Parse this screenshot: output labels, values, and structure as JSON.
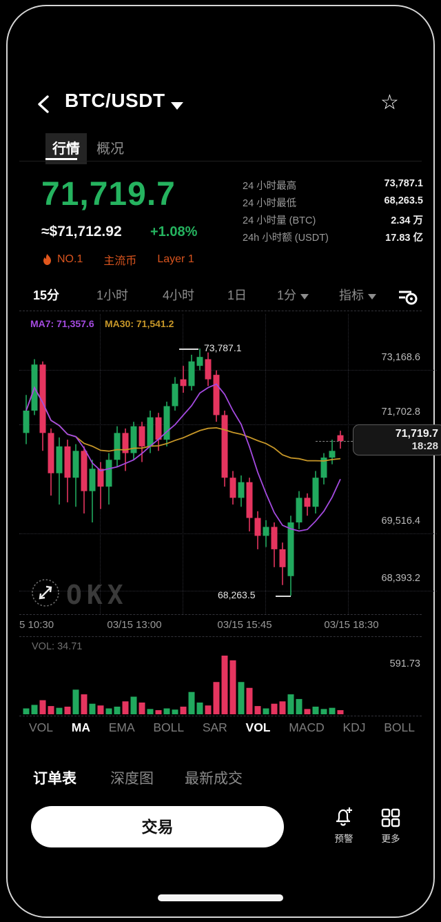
{
  "header": {
    "title": "BTC/USDT"
  },
  "tabs": [
    {
      "label": "行情",
      "active": true
    },
    {
      "label": "概况",
      "active": false
    }
  ],
  "price": {
    "last": "71,719.7",
    "fiat": "≈$71,712.92",
    "change": "+1.08%"
  },
  "stats": [
    {
      "label": "24 小时最高",
      "value": "73,787.1"
    },
    {
      "label": "24 小时最低",
      "value": "68,263.5"
    },
    {
      "label": "24 小时量 (BTC)",
      "value": "2.34 万"
    },
    {
      "label": "24h 小时额 (USDT)",
      "value": "17.83 亿"
    }
  ],
  "badges": {
    "rank": "NO.1",
    "tags": [
      "主流币",
      "Layer 1"
    ]
  },
  "timeframes": [
    {
      "label": "15分",
      "active": true
    },
    {
      "label": "1小时",
      "active": false
    },
    {
      "label": "4小时",
      "active": false
    },
    {
      "label": "1日",
      "active": false
    },
    {
      "label": "1分",
      "active": false,
      "dropdown": true
    }
  ],
  "indicator_menu_label": "指标",
  "watermark": "OKX",
  "chart_data": {
    "type": "candlestick",
    "interval": "15分",
    "title": "BTC/USDT 15m candles",
    "ylim": [
      67925,
      74560
    ],
    "y_ticks": [
      "73,168.6",
      "71,702.8",
      "69,516.4",
      "68,393.2"
    ],
    "x_ticks": [
      "5 10:30",
      "03/15 13:00",
      "03/15 15:45",
      "03/15 18:30"
    ],
    "ma7_label": "MA7: 71,357.6",
    "ma30_label": "MA30: 71,541.2",
    "annotations": {
      "high": "73,787.1",
      "low": "68,263.5"
    },
    "price_tag": {
      "price": "71,719.7",
      "time": "18:28"
    },
    "high_value": 73787.1,
    "low_value": 68263.5,
    "candles_ohlc": [
      [
        71900,
        72750,
        71650,
        72400
      ],
      [
        72400,
        73550,
        72300,
        73430
      ],
      [
        73430,
        73500,
        71500,
        71900
      ],
      [
        71900,
        72000,
        70500,
        71000
      ],
      [
        71000,
        71800,
        70300,
        71600
      ],
      [
        71600,
        71750,
        70350,
        70900
      ],
      [
        70900,
        71650,
        70250,
        71500
      ],
      [
        71500,
        71600,
        70100,
        70600
      ],
      [
        70600,
        71300,
        69900,
        71100
      ],
      [
        71100,
        71250,
        70200,
        70700
      ],
      [
        70700,
        71450,
        70300,
        71300
      ],
      [
        71300,
        72050,
        71150,
        71900
      ],
      [
        71900,
        72000,
        71050,
        71450
      ],
      [
        71450,
        72150,
        71300,
        72050
      ],
      [
        72050,
        72150,
        71250,
        71600
      ],
      [
        71600,
        72400,
        71450,
        72250
      ],
      [
        72250,
        72350,
        71500,
        71750
      ],
      [
        71750,
        72600,
        71600,
        72500
      ],
      [
        72500,
        73150,
        72400,
        73000
      ],
      [
        73100,
        73400,
        72800,
        72950
      ],
      [
        72950,
        73650,
        72850,
        73500
      ],
      [
        73400,
        73787.1,
        73300,
        73600
      ],
      [
        73550,
        73700,
        72950,
        73100
      ],
      [
        73200,
        73300,
        72150,
        72300
      ],
      [
        72300,
        72400,
        70700,
        70900
      ],
      [
        70900,
        71050,
        70300,
        70450
      ],
      [
        70450,
        70950,
        70250,
        70800
      ],
      [
        70800,
        70900,
        69700,
        70000
      ],
      [
        70000,
        70150,
        69300,
        69600
      ],
      [
        69600,
        69950,
        69350,
        69800
      ],
      [
        69800,
        69900,
        68900,
        69300
      ],
      [
        69300,
        69450,
        68500,
        68900
      ],
      [
        68700,
        70050,
        68263.5,
        69900
      ],
      [
        69900,
        70600,
        69750,
        70450
      ],
      [
        70450,
        70550,
        70050,
        70250
      ],
      [
        70250,
        71050,
        70100,
        70900
      ],
      [
        70900,
        71450,
        70750,
        71350
      ],
      [
        71350,
        71750,
        71200,
        71500
      ],
      [
        71850,
        71950,
        71550,
        71719.7
      ]
    ],
    "volumes": [
      10,
      16,
      24,
      14,
      11,
      13,
      42,
      34,
      18,
      15,
      10,
      13,
      22,
      30,
      20,
      9,
      7,
      10,
      8,
      13,
      38,
      20,
      15,
      55,
      100,
      92,
      55,
      45,
      14,
      10,
      18,
      22,
      34,
      26,
      9,
      13,
      9,
      11,
      7
    ],
    "volume_label": "VOL: 34.71",
    "volume_max_label": "591.73"
  },
  "indicator_tabs": [
    {
      "label": "VOL",
      "active": false
    },
    {
      "label": "MA",
      "active": true
    },
    {
      "label": "EMA",
      "active": false
    },
    {
      "label": "BOLL",
      "active": false
    },
    {
      "label": "SAR",
      "active": false
    },
    {
      "label": "VOL",
      "active": true
    },
    {
      "label": "MACD",
      "active": false
    },
    {
      "label": "KDJ",
      "active": false
    },
    {
      "label": "BOLL",
      "active": false
    }
  ],
  "bottom_tabs": [
    {
      "label": "订单表",
      "active": true
    },
    {
      "label": "深度图",
      "active": false
    },
    {
      "label": "最新成交",
      "active": false
    }
  ],
  "footer": {
    "trade_label": "交易",
    "alert_label": "预警",
    "more_label": "更多"
  },
  "colors": {
    "up": "#21a95e",
    "down": "#e5355f",
    "ma7": "#a44ae0",
    "ma30": "#c79728",
    "accent_green": "#25b35f",
    "badge_orange": "#d9541e"
  }
}
